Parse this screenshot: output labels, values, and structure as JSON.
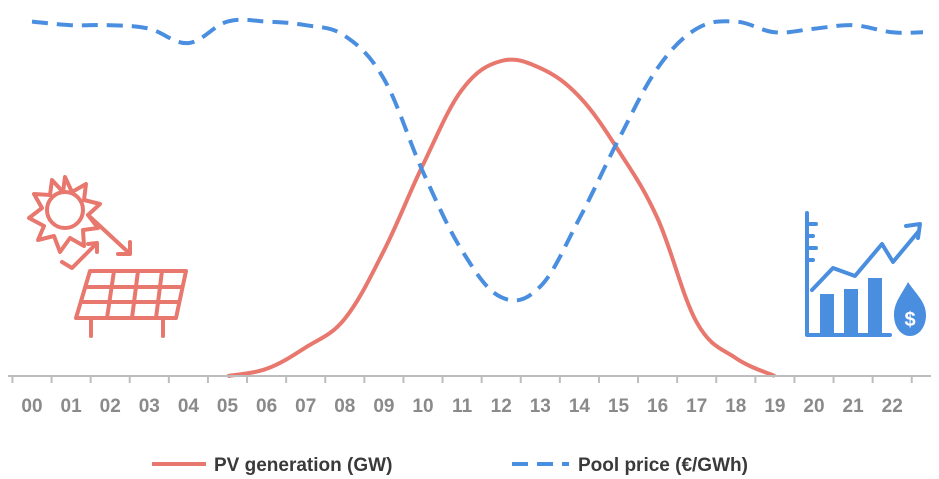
{
  "chart_data": {
    "type": "line",
    "categories": [
      "00",
      "01",
      "02",
      "03",
      "04",
      "05",
      "06",
      "07",
      "08",
      "09",
      "10",
      "11",
      "12",
      "13",
      "14",
      "15",
      "16",
      "17",
      "18",
      "19",
      "20",
      "21",
      "22"
    ],
    "series": [
      {
        "name": "PV generation (GW)",
        "color": "#e8776e",
        "style": "solid",
        "values": [
          null,
          null,
          null,
          null,
          null,
          0,
          2,
          8,
          16,
          35,
          59,
          80,
          88,
          86,
          78,
          63,
          44,
          15,
          5,
          0,
          null,
          null,
          null
        ]
      },
      {
        "name": "Pool price (€/GWh)",
        "color": "#4a8ee0",
        "style": "dashed",
        "values": [
          99,
          98,
          98,
          97,
          93,
          99,
          99,
          98,
          95,
          83,
          57,
          35,
          22,
          25,
          44,
          66,
          86,
          97,
          99,
          96,
          97,
          98,
          96
        ]
      }
    ],
    "ylim": [
      0,
      100
    ],
    "grid": false,
    "legend": "bottom",
    "icons": [
      {
        "name": "solar-panel-icon",
        "color": "#e8776e"
      },
      {
        "name": "price-growth-icon",
        "color": "#4a8ee0"
      }
    ]
  }
}
